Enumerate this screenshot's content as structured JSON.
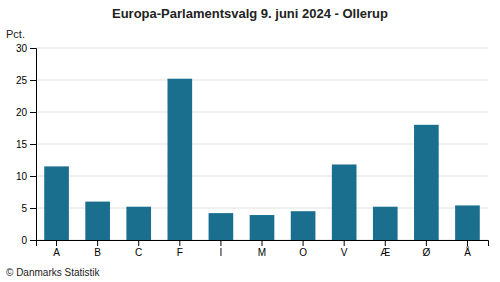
{
  "chart_data": {
    "type": "bar",
    "title": "Europa-Parlamentsvalg 9. juni 2024 - Ollerup",
    "categories": [
      "A",
      "B",
      "C",
      "F",
      "I",
      "M",
      "O",
      "V",
      "Æ",
      "Ø",
      "Å"
    ],
    "values": [
      11.5,
      6.0,
      5.2,
      25.2,
      4.2,
      3.9,
      4.5,
      11.8,
      5.2,
      18.0,
      5.4
    ],
    "color": "#1a6e8e",
    "ylabel": "Pct.",
    "ylim": [
      0,
      30
    ],
    "yticks": [
      0,
      5,
      10,
      15,
      20,
      25,
      30
    ],
    "grid": true,
    "footer": "© Danmarks Statistik"
  }
}
